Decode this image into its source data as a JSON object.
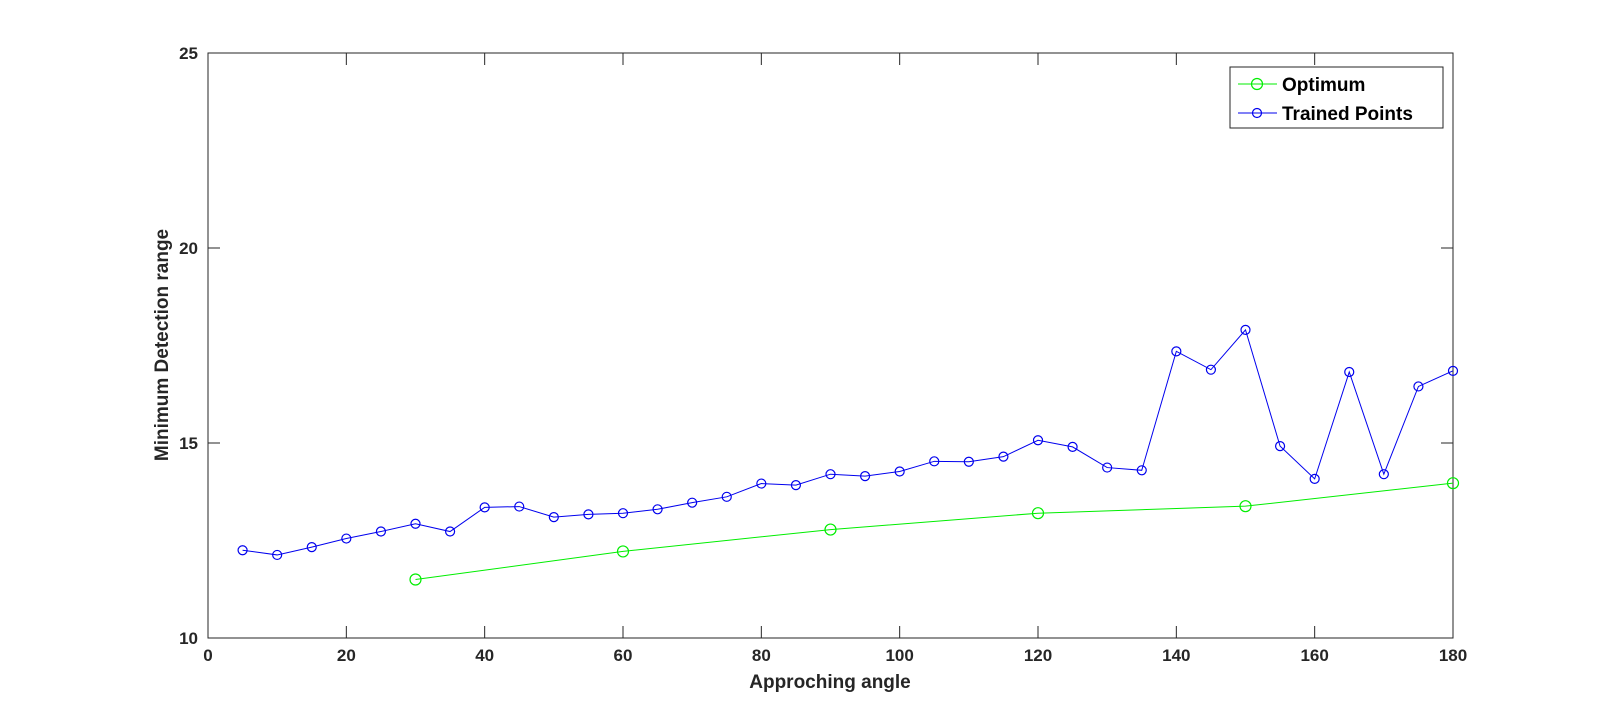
{
  "chart_data": {
    "type": "line",
    "xlabel": "Approching angle",
    "ylabel": "Minimum Detection range",
    "xlim": [
      0,
      180
    ],
    "ylim": [
      10,
      25
    ],
    "xticks": [
      0,
      20,
      40,
      60,
      80,
      100,
      120,
      140,
      160,
      180
    ],
    "yticks": [
      10,
      15,
      20,
      25
    ],
    "grid": false,
    "legend_position": "top-right",
    "series": [
      {
        "name": "Optimum",
        "color": "#00ee00",
        "marker": "circle",
        "x": [
          30,
          60,
          90,
          120,
          150,
          180
        ],
        "y": [
          11.5,
          12.22,
          12.78,
          13.2,
          13.38,
          13.97
        ]
      },
      {
        "name": "Trained Points",
        "color": "#0000ee",
        "marker": "circle",
        "x": [
          5,
          10,
          15,
          20,
          25,
          30,
          35,
          40,
          45,
          50,
          55,
          60,
          65,
          70,
          75,
          80,
          85,
          90,
          95,
          100,
          105,
          110,
          115,
          120,
          125,
          130,
          135,
          140,
          145,
          150,
          155,
          160,
          165,
          170,
          175,
          180
        ],
        "y": [
          12.25,
          12.13,
          12.33,
          12.55,
          12.73,
          12.93,
          12.73,
          13.35,
          13.37,
          13.1,
          13.17,
          13.2,
          13.3,
          13.47,
          13.62,
          13.96,
          13.92,
          14.2,
          14.15,
          14.27,
          14.53,
          14.52,
          14.65,
          15.07,
          14.9,
          14.37,
          14.3,
          17.35,
          16.88,
          17.9,
          14.92,
          14.08,
          16.82,
          14.2,
          16.45,
          16.85
        ]
      }
    ]
  }
}
